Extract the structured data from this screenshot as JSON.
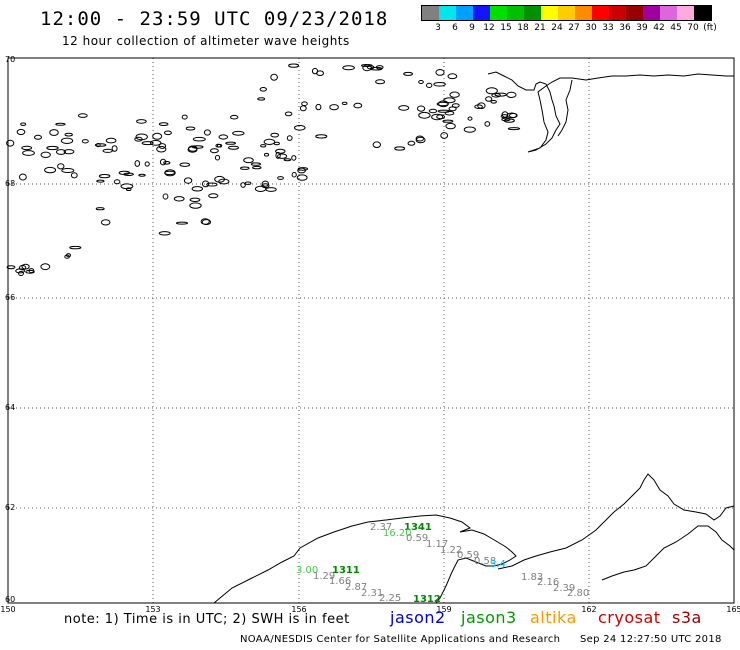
{
  "header": {
    "title": "12:00 - 23:59 UTC 09/23/2018",
    "subtitle": "12 hour collection of altimeter wave heights"
  },
  "legend": {
    "colors": [
      "#808080",
      "#00e5ee",
      "#00a0ff",
      "#1414ff",
      "#00e000",
      "#00c000",
      "#009000",
      "#ffff00",
      "#ffcc00",
      "#ff8c00",
      "#ff0000",
      "#cc0000",
      "#990000",
      "#a000a0",
      "#dd66dd",
      "#ffaadd",
      "#000000"
    ],
    "labels": [
      "3",
      "6",
      "9",
      "12",
      "15",
      "18",
      "21",
      "24",
      "27",
      "30",
      "33",
      "36",
      "39",
      "42",
      "45",
      "70",
      "(ft)"
    ]
  },
  "axes": {
    "lat_labels": [
      "70",
      "68",
      "66",
      "64",
      "62",
      "60"
    ],
    "lon_labels": [
      "150",
      "153",
      "156",
      "159",
      "162",
      "165"
    ]
  },
  "observations": [
    {
      "text": "2.37",
      "color": "#808080",
      "size": 10
    },
    {
      "text": "1341",
      "color": "#008800",
      "size": 12
    },
    {
      "text": "16.20",
      "color": "#44cc44",
      "size": 10
    },
    {
      "text": "0.59",
      "color": "#808080",
      "size": 10
    },
    {
      "text": "1.17",
      "color": "#808080",
      "size": 10
    },
    {
      "text": "1.22",
      "color": "#808080",
      "size": 10
    },
    {
      "text": "0.59",
      "color": "#808080",
      "size": 10
    },
    {
      "text": "0.58",
      "color": "#808080",
      "size": 10
    },
    {
      "text": "3.4",
      "color": "#00bbee",
      "size": 10
    },
    {
      "text": "1.83",
      "color": "#808080",
      "size": 10
    },
    {
      "text": "2.16",
      "color": "#808080",
      "size": 10
    },
    {
      "text": "2.39",
      "color": "#808080",
      "size": 10
    },
    {
      "text": "2.80",
      "color": "#808080",
      "size": 10
    },
    {
      "text": "3.00",
      "color": "#44cc44",
      "size": 10
    },
    {
      "text": "1.29",
      "color": "#808080",
      "size": 10
    },
    {
      "text": "1311",
      "color": "#008800",
      "size": 12
    },
    {
      "text": "1.66",
      "color": "#808080",
      "size": 10
    },
    {
      "text": "2.87",
      "color": "#808080",
      "size": 10
    },
    {
      "text": "2.31",
      "color": "#808080",
      "size": 10
    },
    {
      "text": "2.25",
      "color": "#808080",
      "size": 10
    },
    {
      "text": "1312",
      "color": "#008800",
      "size": 12
    }
  ],
  "footer": {
    "note": "note: 1) Time is in UTC; 2) SWH is in feet",
    "satellites": [
      {
        "name": "jason2",
        "color": "#0000cc"
      },
      {
        "name": "jason3",
        "color": "#009900"
      },
      {
        "name": "altika",
        "color": "#ff9900"
      },
      {
        "name": "cryosat",
        "color": "#cc0000"
      },
      {
        "name": "s3a",
        "color": "#990000"
      }
    ],
    "credit": "NOAA/NESDIS Center for Satellite Applications and Research",
    "timestamp": "Sep 24 12:27:50 UTC 2018"
  }
}
